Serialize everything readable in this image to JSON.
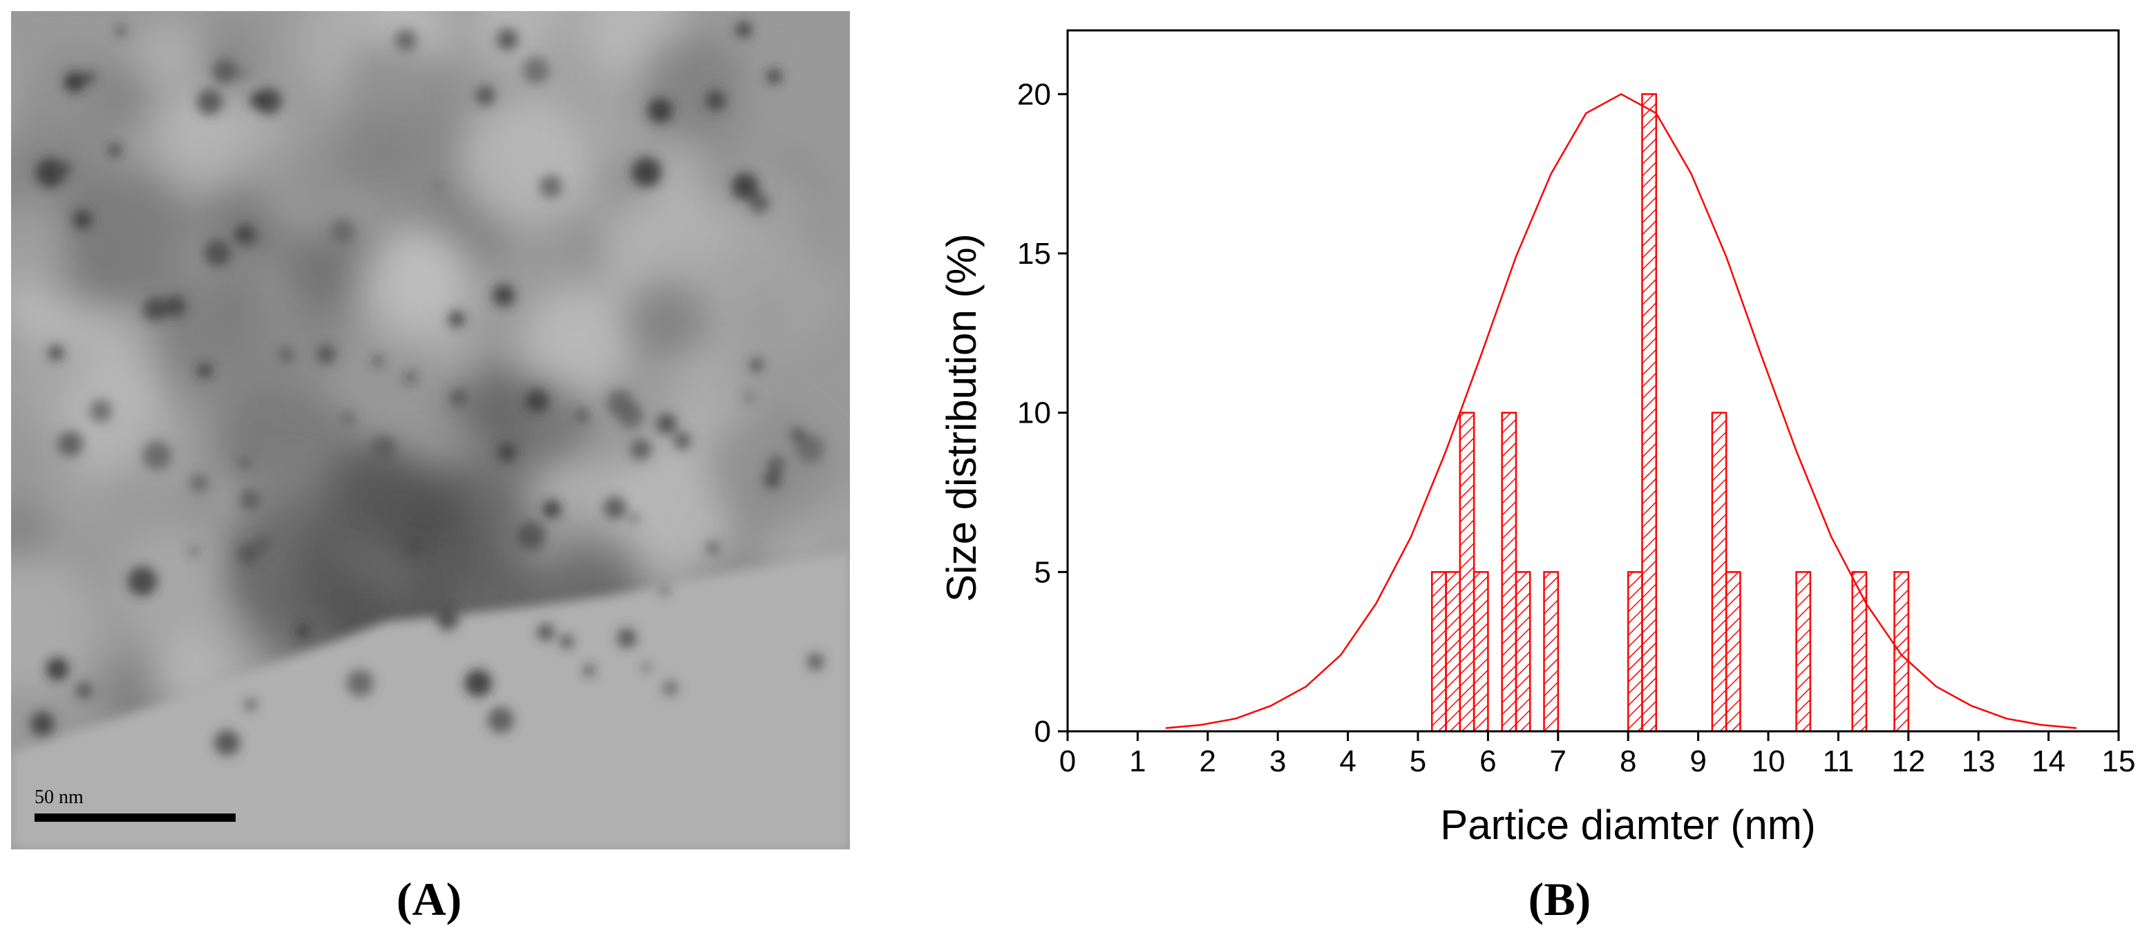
{
  "chart_data": {
    "type": "histogram",
    "x_label": "Partice diamter (nm)",
    "y_label": "Size distribution (%)",
    "bins": [
      5.2,
      5.4,
      5.6,
      5.8,
      6.0,
      6.2,
      6.4,
      6.6,
      6.8,
      7.0,
      7.2,
      7.4,
      7.6,
      7.8,
      8.0,
      8.2,
      8.4,
      8.6,
      8.8,
      9.0,
      9.2,
      9.4,
      9.6,
      9.8,
      10.0,
      10.2,
      10.4,
      10.6,
      10.8,
      11.0,
      11.2,
      11.4,
      11.6,
      11.8,
      12.0
    ],
    "values": [
      5,
      5,
      10,
      5,
      0,
      10,
      5,
      0,
      5,
      0,
      0,
      0,
      0,
      0,
      5,
      20,
      0,
      0,
      0,
      0,
      10,
      5,
      0,
      0,
      0,
      0,
      5,
      0,
      0,
      0,
      5,
      0,
      0,
      5
    ],
    "color": "#ff0000",
    "fit": {
      "x": [
        1.4,
        1.9,
        2.4,
        2.9,
        3.4,
        3.9,
        4.4,
        4.9,
        5.4,
        5.9,
        6.4,
        6.9,
        7.4,
        7.9,
        8.4,
        8.9,
        9.4,
        9.9,
        10.4,
        10.9,
        11.4,
        11.9,
        12.4,
        12.9,
        13.4,
        13.9,
        14.4
      ],
      "values": [
        0.1,
        0.2,
        0.4,
        0.8,
        1.4,
        2.4,
        4.0,
        6.1,
        8.8,
        11.8,
        14.9,
        17.5,
        19.4,
        20,
        19.4,
        17.5,
        14.9,
        11.8,
        8.8,
        6.1,
        4.0,
        2.4,
        1.4,
        0.8,
        0.4,
        0.2,
        0.1
      ]
    },
    "xlim": [
      0,
      15
    ],
    "xticks": [
      0,
      1,
      2,
      3,
      4,
      5,
      6,
      7,
      8,
      9,
      10,
      11,
      12,
      13,
      14,
      15
    ],
    "ylim": [
      0,
      22
    ],
    "yticks": [
      0,
      5,
      10,
      15,
      20
    ]
  },
  "figure": {
    "scale_bar": "50 nm",
    "panel_labels": [
      "(A)",
      "(B)"
    ]
  }
}
